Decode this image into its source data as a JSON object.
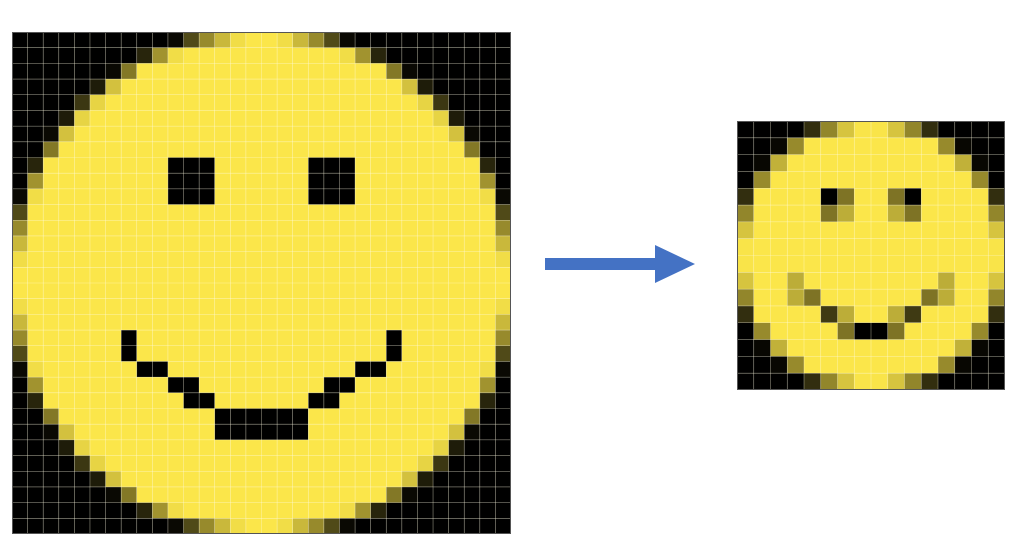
{
  "colors": {
    "background": "#000000",
    "face": "#fbe64a",
    "grid_line": "#fffbe0",
    "arrow": "#4472c4"
  },
  "large_image": {
    "cols": 32,
    "rows": 32
  },
  "small_image": {
    "cols": 16,
    "rows": 16
  },
  "arrow_direction": "right"
}
